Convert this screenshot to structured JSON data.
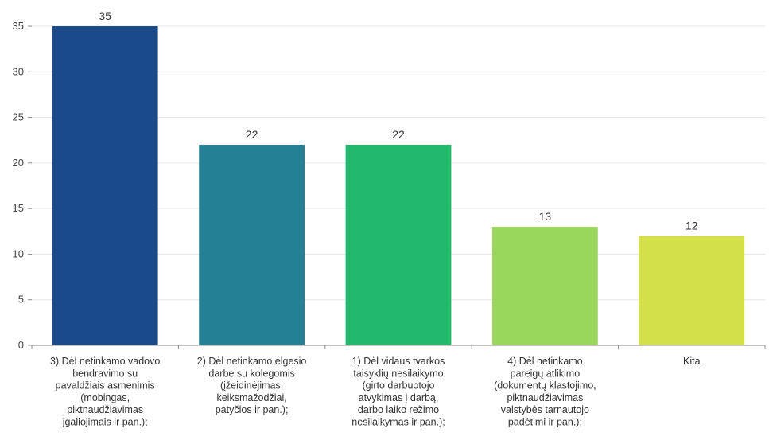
{
  "chart_data": {
    "type": "bar",
    "categories": [
      [
        "3) Dėl netinkamo vadovo",
        "bendravimo su",
        "pavaldžiais asmenimis",
        "(mobingas,",
        "piktnaudžiavimas",
        "įgaliojimais ir pan.);"
      ],
      [
        "2) Dėl netinkamo elgesio",
        "darbe su kolegomis",
        "(įžeidinėjimas,",
        "keiksmažodžiai,",
        "patyčios ir pan.);"
      ],
      [
        "1) Dėl vidaus tvarkos",
        "taisyklių nesilaikymo",
        "(girto darbuotojo",
        "atvykimas į darbą,",
        "darbo laiko režimo",
        "nesilaikymas ir pan.);"
      ],
      [
        "4) Dėl netinkamo",
        "pareigų atlikimo",
        "(dokumentų klastojimo,",
        "piktnaudžiavimas",
        "valstybės tarnautojo",
        "padėtimi ir pan.);"
      ],
      [
        "Kita"
      ]
    ],
    "values": [
      35,
      22,
      22,
      13,
      12
    ],
    "colors": [
      "#1a4a8a",
      "#238095",
      "#21b86a",
      "#9bd65c",
      "#d4e04a"
    ],
    "ylim": [
      0,
      35
    ],
    "yticks": [
      0,
      5,
      10,
      15,
      20,
      25,
      30,
      35
    ],
    "grid": true,
    "title": "",
    "xlabel": "",
    "ylabel": ""
  }
}
